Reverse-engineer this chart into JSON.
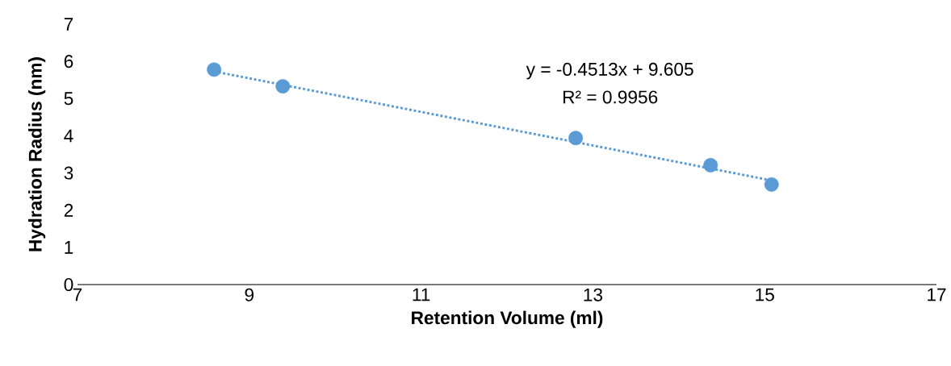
{
  "chart_data": {
    "type": "scatter",
    "xlabel": "Retention Volume (ml)",
    "ylabel": "Hydration Radius (nm)",
    "xlim": [
      7,
      17
    ],
    "xticks": [
      7,
      9,
      11,
      13,
      15,
      17
    ],
    "ylim": [
      0,
      7
    ],
    "yticks": [
      0,
      1,
      2,
      3,
      4,
      5,
      6,
      7
    ],
    "grid": false,
    "annotations": [
      "y = -0.4513x + 9.605",
      "R² = 0.9956"
    ],
    "series": [
      {
        "type": "scatter",
        "color": "#5b9bd5",
        "marker": "circle",
        "x": [
          8.59,
          9.39,
          12.8,
          14.37,
          15.08
        ],
        "values": [
          5.78,
          5.33,
          3.94,
          3.21,
          2.69
        ]
      },
      {
        "type": "line",
        "color": "#5b9bd5",
        "marker": "none",
        "line_style": "dotted",
        "x": [
          8.59,
          15.08
        ],
        "values": [
          5.73,
          2.8
        ]
      }
    ]
  }
}
